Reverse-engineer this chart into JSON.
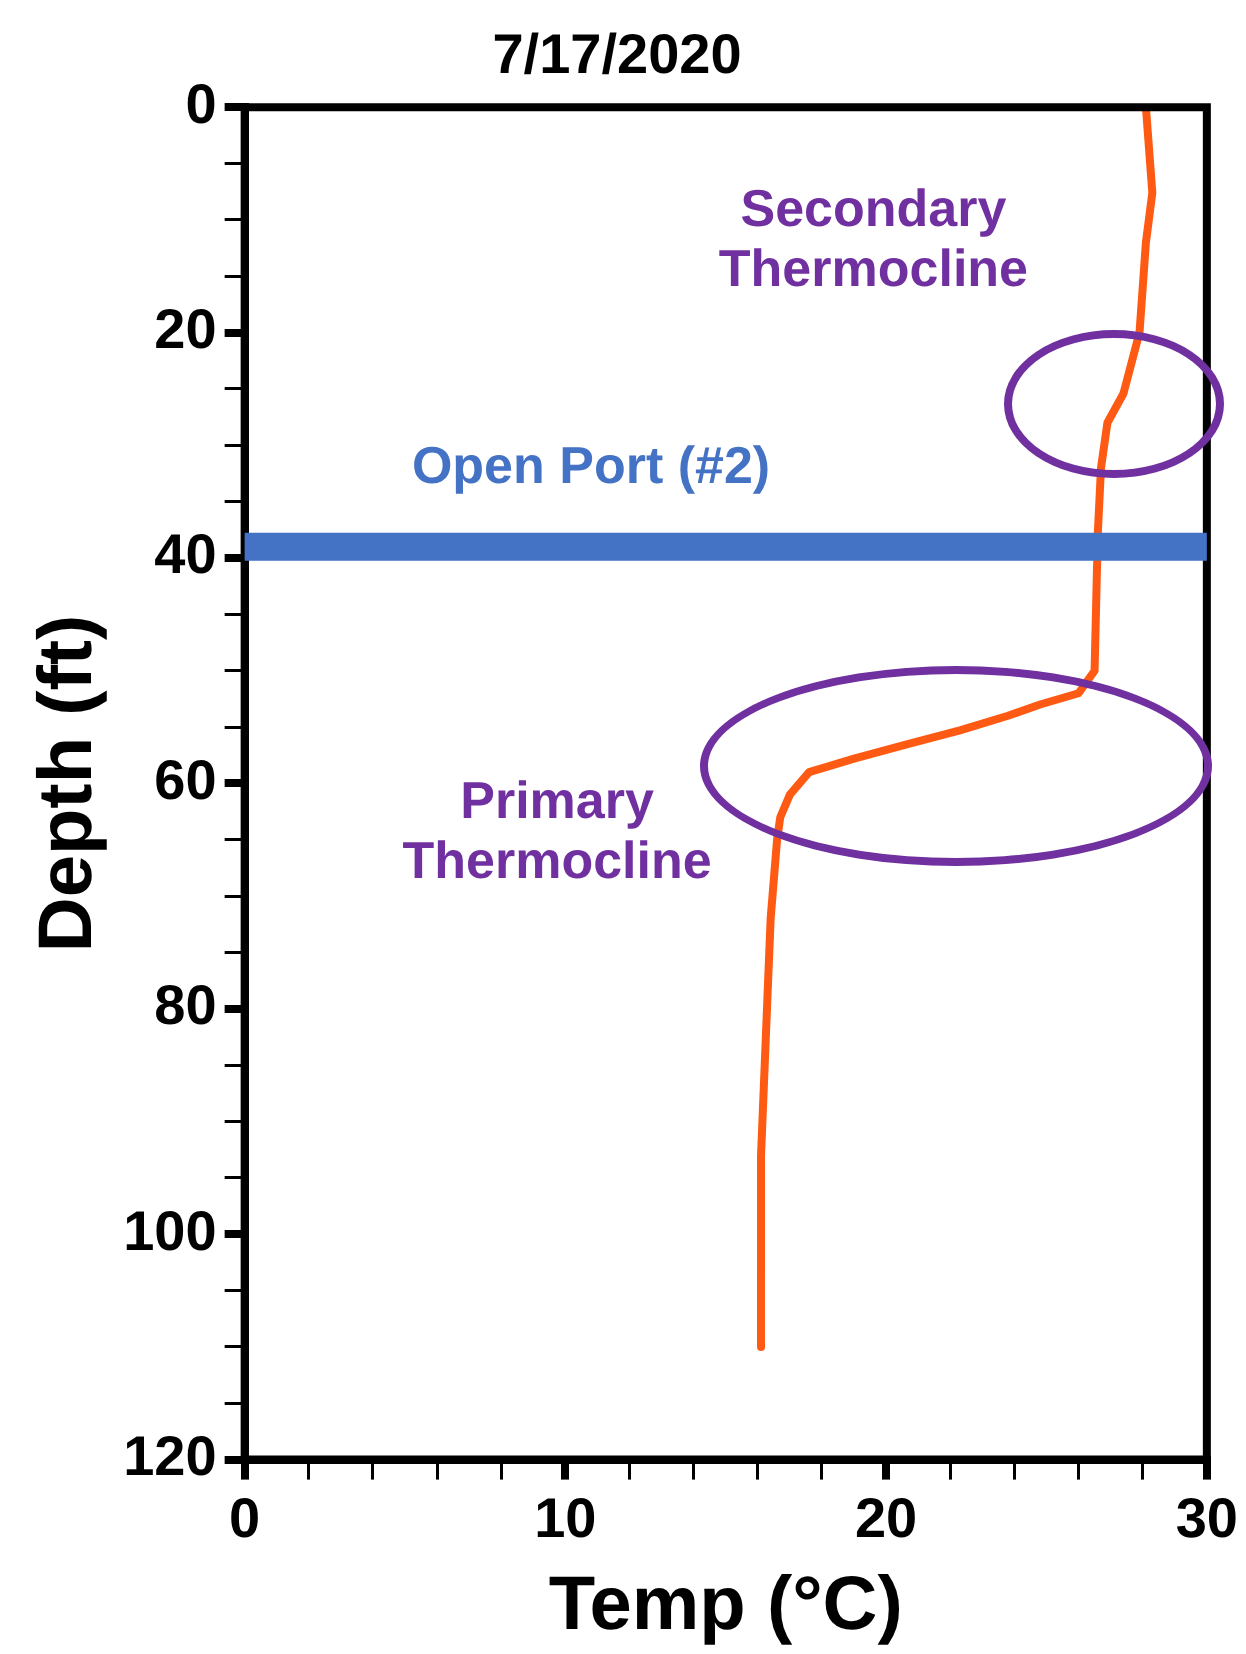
{
  "chart_data": {
    "type": "line",
    "title": "7/17/2020",
    "xlabel": "Temp (°C)",
    "ylabel": "Depth (ft)",
    "series": [
      {
        "color": "#ff5a14",
        "x": [
          28.1,
          28.3,
          28.1,
          27.9,
          27.4,
          26.9,
          26.7,
          26.6,
          26.5,
          26.0,
          24.8,
          23.8,
          22.3,
          20.7,
          19.0,
          17.6,
          17.0,
          16.7,
          16.6,
          16.4,
          16.3,
          16.1,
          16.1
        ],
        "values": [
          0,
          7.6,
          12,
          20,
          25.4,
          28,
          32,
          37.8,
          50,
          52,
          53,
          54,
          55.3,
          56.5,
          57.8,
          59,
          61,
          63,
          65,
          72,
          79,
          93,
          110
        ]
      }
    ],
    "xlim": [
      0,
      30
    ],
    "ylim": [
      120,
      0
    ],
    "xticks": [
      0,
      {
        "value": 2,
        "label": null
      },
      {
        "value": 4,
        "label": null
      },
      {
        "value": 6,
        "label": null
      },
      {
        "value": 8,
        "label": null
      },
      10,
      {
        "value": 12,
        "label": null
      },
      {
        "value": 14,
        "label": null
      },
      {
        "value": 16,
        "label": null
      },
      {
        "value": 18,
        "label": null
      },
      20,
      {
        "value": 22,
        "label": null
      },
      {
        "value": 24,
        "label": null
      },
      {
        "value": 26,
        "label": null
      },
      {
        "value": 28,
        "label": null
      },
      30
    ],
    "yticks": [
      0,
      {
        "value": 5,
        "label": null
      },
      {
        "value": 10,
        "label": null
      },
      {
        "value": 15,
        "label": null
      },
      20,
      {
        "value": 25,
        "label": null
      },
      {
        "value": 30,
        "label": null
      },
      {
        "value": 35,
        "label": null
      },
      40,
      {
        "value": 45,
        "label": null
      },
      {
        "value": 50,
        "label": null
      },
      {
        "value": 55,
        "label": null
      },
      60,
      {
        "value": 65,
        "label": null
      },
      {
        "value": 70,
        "label": null
      },
      {
        "value": 75,
        "label": null
      },
      80,
      {
        "value": 85,
        "label": null
      },
      {
        "value": 90,
        "label": null
      },
      {
        "value": 95,
        "label": null
      },
      100,
      {
        "value": 105,
        "label": null
      },
      {
        "value": 110,
        "label": null
      },
      {
        "value": 115,
        "label": null
      },
      120
    ],
    "ref_lines": [
      {
        "axis": "y",
        "value": 39,
        "label": "Open Port (#2)",
        "color": "#4472c4"
      }
    ],
    "annotations": [
      {
        "text": "Secondary Thermocline",
        "x": 27.4,
        "y": 25.4
      },
      {
        "text": "Primary Thermocline",
        "x": 16.6,
        "y": 65
      }
    ],
    "grid": false,
    "legend": false,
    "marker": "none",
    "line_style": "solid"
  }
}
